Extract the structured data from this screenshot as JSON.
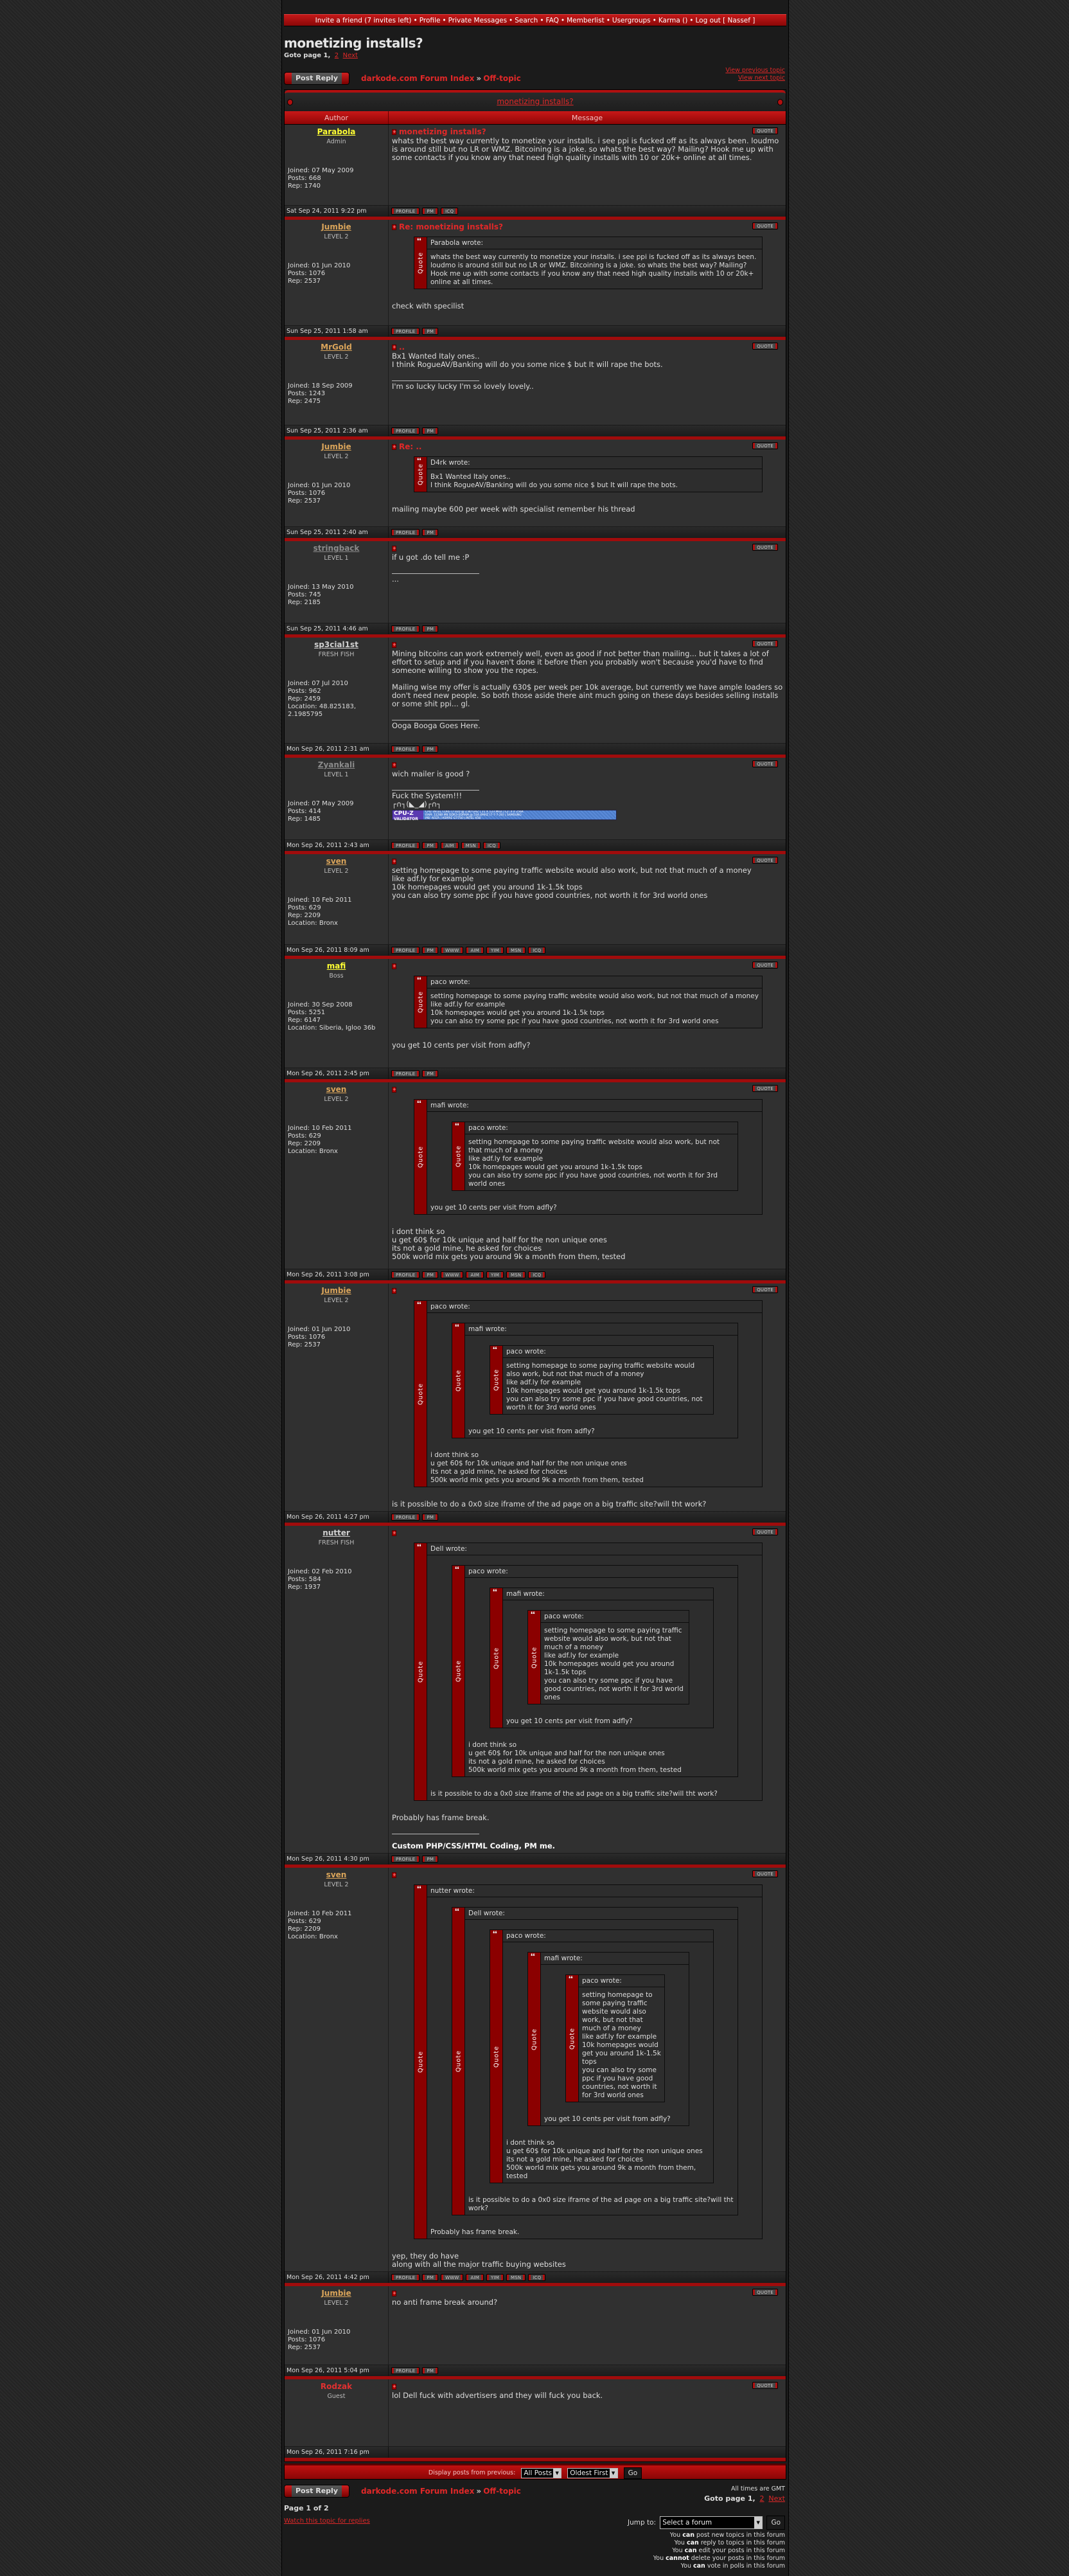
{
  "nav": {
    "items": [
      "Invite a friend (7 invites left)",
      "Profile",
      "Private Messages",
      "Search",
      "FAQ",
      "Memberlist",
      "Usergroups",
      "Karma ()",
      "Log out [ Nassef ]"
    ],
    "separator": "•"
  },
  "topic": {
    "title": "monetizing installs?",
    "goto_label": "Goto page 1,",
    "goto_page2": "2",
    "goto_next": "Next",
    "post_reply": "Post Reply",
    "breadcrumb_index": "darkode.com Forum Index",
    "breadcrumb_sep": "»",
    "breadcrumb_forum": "Off-topic",
    "view_previous": "View previous topic",
    "view_next": "View next topic",
    "col_author": "Author",
    "col_message": "Message",
    "quote_button": "QUOTE",
    "quote_word": "Quote",
    "wrote_suffix": " wrote:"
  },
  "colors": {
    "accent": "#e02828",
    "header_red": "#b01010",
    "quote_bar": "#8b0000"
  },
  "posts": [
    {
      "author": "Parabola",
      "rank": "Admin",
      "color": "#ffff33",
      "stats": [
        "Joined: 07 May 2009",
        "Posts: 668",
        "Rep: 1740"
      ],
      "subject": "monetizing installs?",
      "content": [
        {
          "type": "text",
          "lines": [
            "whats the best way currently to monetize your installs. i see ppi is fucked off as its always been. loudmo is around still but no LR or WMZ. Bitcoining is a joke. so whats the best way? Mailing? Hook me up with some contacts if you know any that need high quality installs with 10 or 20k+ online at all times."
          ]
        }
      ],
      "time": "Sat Sep 24, 2011 9:22 pm",
      "buttons": [
        "PROFILE",
        "PM",
        "ICQ"
      ]
    },
    {
      "author": "Jumbie",
      "rank": "LEVEL 2",
      "color": "#d9a45a",
      "stats": [
        "Joined: 01 Jun 2010",
        "Posts: 1076",
        "Rep: 2537"
      ],
      "subject": "Re: monetizing installs?",
      "content": [
        {
          "type": "quote",
          "author": "Parabola",
          "content": [
            {
              "type": "text",
              "lines": [
                "whats the best way currently to monetize your installs. i see ppi is fucked off as its always been. loudmo is around still but no LR or WMZ. Bitcoining is a joke. so whats the best way? Mailing? Hook me up with some contacts if you know any that need high quality installs with 10 or 20k+ online at all times."
              ]
            }
          ]
        },
        {
          "type": "text",
          "lines": [
            "check with specilist"
          ]
        }
      ],
      "time": "Sun Sep 25, 2011 1:58 am",
      "buttons": [
        "PROFILE",
        "PM"
      ]
    },
    {
      "author": "MrGold",
      "rank": "LEVEL 2",
      "color": "#d9a45a",
      "stats": [
        "Joined: 18 Sep 2009",
        "Posts: 1243",
        "Rep: 2475"
      ],
      "subject": "..",
      "content": [
        {
          "type": "text",
          "lines": [
            "Bx1 Wanted Italy ones..",
            "I think RogueAV/Banking will do you some nice $ but It will rape the bots."
          ]
        }
      ],
      "signature": [
        "I'm so lucky lucky I'm so lovely lovely.."
      ],
      "time": "Sun Sep 25, 2011 2:36 am",
      "buttons": [
        "PROFILE",
        "PM"
      ]
    },
    {
      "author": "Jumbie",
      "rank": "LEVEL 2",
      "color": "#d9a45a",
      "stats": [
        "Joined: 01 Jun 2010",
        "Posts: 1076",
        "Rep: 2537"
      ],
      "subject": "Re: ..",
      "content": [
        {
          "type": "quote",
          "author": "D4rk",
          "content": [
            {
              "type": "text",
              "lines": [
                "Bx1 Wanted Italy ones..",
                "I think RogueAV/Banking will do you some nice $ but It will rape the bots."
              ]
            }
          ]
        },
        {
          "type": "text",
          "lines": [
            "mailing maybe 600 per week with specialist remember his thread"
          ]
        }
      ],
      "time": "Sun Sep 25, 2011 2:40 am",
      "buttons": [
        "PROFILE",
        "PM"
      ]
    },
    {
      "author": "stringback",
      "rank": "LEVEL 1",
      "color": "#8a8a8a",
      "stats": [
        "Joined: 13 May 2010",
        "Posts: 745",
        "Rep: 2185"
      ],
      "subject": "",
      "content": [
        {
          "type": "text",
          "lines": [
            "if u got .do tell me :P"
          ]
        }
      ],
      "signature": [
        "..."
      ],
      "time": "Sun Sep 25, 2011 4:46 am",
      "buttons": [
        "PROFILE",
        "PM"
      ]
    },
    {
      "author": "sp3cial1st",
      "rank": "FRESH FISH",
      "color": "#cfcfcf",
      "stats": [
        "Joined: 07 Jul 2010",
        "Posts: 962",
        "Rep: 2459",
        "Location: 48.825183, 2.1985795"
      ],
      "subject": "",
      "content": [
        {
          "type": "text",
          "lines": [
            "Mining bitcoins can work extremely well, even as good if not better than mailing... but it takes a lot of effort to setup and if you haven't done it before then you probably won't because you'd have to find someone willing to show you the ropes.",
            "",
            "Mailing wise my offer is actually 630$ per week per 10k average, but currently we have ample loaders so don't need new people. So both those aside there aint much going on these days besides selling installs or some shit ppi... gl."
          ]
        }
      ],
      "signature": [
        "Ooga Booga Goes Here."
      ],
      "time": "Mon Sep 26, 2011 2:31 am",
      "buttons": [
        "PROFILE",
        "PM"
      ]
    },
    {
      "author": "Zyankali",
      "rank": "LEVEL 1",
      "color": "#8a8a8a",
      "stats": [
        "Joined: 07 May 2009",
        "Posts: 414",
        "Rep: 1485"
      ],
      "subject": "",
      "content": [
        {
          "type": "text",
          "lines": [
            "wich mailer is good ?"
          ]
        }
      ],
      "signature": [
        "Fuck the System!!!",
        "┌∩┐(◣_◢)┌∩┐"
      ],
      "cpuz": {
        "logo": "CPU-Z",
        "logo_sub": "VALIDATOR",
        "lines": [
          "CPU: INTEL CORE I7 920 @ 2.80 GHZ | 21 X 133 MHZ | L2: 4 X 256K",
          "RAM: 12288 MB DDR3-SDRAM @ 534.4MHZ (7-7-7-20) | SAMSUNG",
          "MB: ACER | ASPIRE G7750 | INTEL X58"
        ]
      },
      "time": "Mon Sep 26, 2011 2:43 am",
      "buttons": [
        "PROFILE",
        "PM",
        "AIM",
        "MSN",
        "ICQ"
      ]
    },
    {
      "author": "sven",
      "rank": "LEVEL 2",
      "color": "#d9a45a",
      "stats": [
        "Joined: 10 Feb 2011",
        "Posts: 629",
        "Rep: 2209",
        "Location: Bronx"
      ],
      "subject": "",
      "content": [
        {
          "type": "text",
          "lines": [
            "setting homepage to some paying traffic website would also work, but not that much of a money",
            "like adf.ly for example",
            "10k homepages would get you around 1k-1.5k tops",
            "you can also try some ppc if you have good countries, not worth it for 3rd world ones"
          ]
        }
      ],
      "time": "Mon Sep 26, 2011 8:09 am",
      "buttons": [
        "PROFILE",
        "PM",
        "WWW",
        "AIM",
        "YIM",
        "MSN",
        "ICQ"
      ]
    },
    {
      "author": "mafi",
      "rank": "Boss",
      "color": "#ffff33",
      "stats": [
        "Joined: 30 Sep 2008",
        "Posts: 5251",
        "Rep: 6147",
        "Location: Siberia, Igloo 36b"
      ],
      "subject": "",
      "content": [
        {
          "type": "quote",
          "author": "paco",
          "content": [
            {
              "type": "text",
              "lines": [
                "setting homepage to some paying traffic website would also work, but not that much of a money",
                "like adf.ly for example",
                "10k homepages would get you around 1k-1.5k tops",
                "you can also try some ppc if you have good countries, not worth it for 3rd world ones"
              ]
            }
          ]
        },
        {
          "type": "text",
          "lines": [
            "you get 10 cents per visit from adfly?"
          ]
        }
      ],
      "time": "Mon Sep 26, 2011 2:45 pm",
      "buttons": [
        "PROFILE",
        "PM"
      ]
    },
    {
      "author": "sven",
      "rank": "LEVEL 2",
      "color": "#d9a45a",
      "stats": [
        "Joined: 10 Feb 2011",
        "Posts: 629",
        "Rep: 2209",
        "Location: Bronx"
      ],
      "subject": "",
      "content": [
        {
          "type": "quote",
          "author": "mafi",
          "content": [
            {
              "type": "quote",
              "author": "paco",
              "content": [
                {
                  "type": "text",
                  "lines": [
                    "setting homepage to some paying traffic website would also work, but not that much of a money",
                    "like adf.ly for example",
                    "10k homepages would get you around 1k-1.5k tops",
                    "you can also try some ppc if you have good countries, not worth it for 3rd world ones"
                  ]
                }
              ]
            },
            {
              "type": "text",
              "lines": [
                "you get 10 cents per visit from adfly?"
              ]
            }
          ]
        },
        {
          "type": "text",
          "lines": [
            "i dont think so",
            "u get 60$ for 10k unique and half for the non unique ones",
            "its not a gold mine, he asked for choices",
            "500k world mix gets you around 9k a month from them, tested"
          ]
        }
      ],
      "time": "Mon Sep 26, 2011 3:08 pm",
      "buttons": [
        "PROFILE",
        "PM",
        "WWW",
        "AIM",
        "YIM",
        "MSN",
        "ICQ"
      ]
    },
    {
      "author": "Jumbie",
      "rank": "LEVEL 2",
      "color": "#d9a45a",
      "stats": [
        "Joined: 01 Jun 2010",
        "Posts: 1076",
        "Rep: 2537"
      ],
      "subject": "",
      "content": [
        {
          "type": "quote",
          "author": "paco",
          "content": [
            {
              "type": "quote",
              "author": "mafi",
              "content": [
                {
                  "type": "quote",
                  "author": "paco",
                  "content": [
                    {
                      "type": "text",
                      "lines": [
                        "setting homepage to some paying traffic website would also work, but not that much of a money",
                        "like adf.ly for example",
                        "10k homepages would get you around 1k-1.5k tops",
                        "you can also try some ppc if you have good countries, not worth it for 3rd world ones"
                      ]
                    }
                  ]
                },
                {
                  "type": "text",
                  "lines": [
                    "you get 10 cents per visit from adfly?"
                  ]
                }
              ]
            },
            {
              "type": "text",
              "lines": [
                "i dont think so",
                "u get 60$ for 10k unique and half for the non unique ones",
                "its not a gold mine, he asked for choices",
                "500k world mix gets you around 9k a month from them, tested"
              ]
            }
          ]
        },
        {
          "type": "text",
          "lines": [
            "is it possible to do a 0x0 size iframe of the ad page on a big traffic site?will tht work?"
          ]
        }
      ],
      "time": "Mon Sep 26, 2011 4:27 pm",
      "buttons": [
        "PROFILE",
        "PM"
      ]
    },
    {
      "author": "nutter",
      "rank": "FRESH FISH",
      "color": "#cfcfcf",
      "stats": [
        "Joined: 02 Feb 2010",
        "Posts: 584",
        "Rep: 1937"
      ],
      "subject": "",
      "content": [
        {
          "type": "quote",
          "author": "Dell",
          "content": [
            {
              "type": "quote",
              "author": "paco",
              "content": [
                {
                  "type": "quote",
                  "author": "mafi",
                  "content": [
                    {
                      "type": "quote",
                      "author": "paco",
                      "content": [
                        {
                          "type": "text",
                          "lines": [
                            "setting homepage to some paying traffic website would also work, but not that much of a money",
                            "like adf.ly for example",
                            "10k homepages would get you around 1k-1.5k tops",
                            "you can also try some ppc if you have good countries, not worth it for 3rd world ones"
                          ]
                        }
                      ]
                    },
                    {
                      "type": "text",
                      "lines": [
                        "you get 10 cents per visit from adfly?"
                      ]
                    }
                  ]
                },
                {
                  "type": "text",
                  "lines": [
                    "i dont think so",
                    "u get 60$ for 10k unique and half for the non unique ones",
                    "its not a gold mine, he asked for choices",
                    "500k world mix gets you around 9k a month from them, tested"
                  ]
                }
              ]
            },
            {
              "type": "text",
              "lines": [
                "is it possible to do a 0x0 size iframe of the ad page on a big traffic site?will tht work?"
              ]
            }
          ]
        },
        {
          "type": "text",
          "lines": [
            "Probably has frame break."
          ]
        }
      ],
      "signature": [
        "Custom PHP/CSS/HTML Coding, PM me."
      ],
      "signature_bold": true,
      "time": "Mon Sep 26, 2011 4:30 pm",
      "buttons": [
        "PROFILE",
        "PM"
      ]
    },
    {
      "author": "sven",
      "rank": "LEVEL 2",
      "color": "#d9a45a",
      "stats": [
        "Joined: 10 Feb 2011",
        "Posts: 629",
        "Rep: 2209",
        "Location: Bronx"
      ],
      "subject": "",
      "content": [
        {
          "type": "quote",
          "author": "nutter",
          "content": [
            {
              "type": "quote",
              "author": "Dell",
              "content": [
                {
                  "type": "quote",
                  "author": "paco",
                  "content": [
                    {
                      "type": "quote",
                      "author": "mafi",
                      "content": [
                        {
                          "type": "quote",
                          "author": "paco",
                          "content": [
                            {
                              "type": "text",
                              "lines": [
                                "setting homepage to some paying traffic website would also work, but not that much of a money",
                                "like adf.ly for example",
                                "10k homepages would get you around 1k-1.5k tops",
                                "you can also try some ppc if you have good countries, not worth it for 3rd world ones"
                              ]
                            }
                          ]
                        },
                        {
                          "type": "text",
                          "lines": [
                            "you get 10 cents per visit from adfly?"
                          ]
                        }
                      ]
                    },
                    {
                      "type": "text",
                      "lines": [
                        "i dont think so",
                        "u get 60$ for 10k unique and half for the non unique ones",
                        "its not a gold mine, he asked for choices",
                        "500k world mix gets you around 9k a month from them, tested"
                      ]
                    }
                  ]
                },
                {
                  "type": "text",
                  "lines": [
                    "is it possible to do a 0x0 size iframe of the ad page on a big traffic site?will tht work?"
                  ]
                }
              ]
            },
            {
              "type": "text",
              "lines": [
                "Probably has frame break."
              ]
            }
          ]
        },
        {
          "type": "text",
          "lines": [
            "yep, they do have",
            "along with all the major traffic buying websites"
          ]
        }
      ],
      "time": "Mon Sep 26, 2011 4:42 pm",
      "buttons": [
        "PROFILE",
        "PM",
        "WWW",
        "AIM",
        "YIM",
        "MSN",
        "ICQ"
      ]
    },
    {
      "author": "Jumbie",
      "rank": "LEVEL 2",
      "color": "#d9a45a",
      "stats": [
        "Joined: 01 Jun 2010",
        "Posts: 1076",
        "Rep: 2537"
      ],
      "subject": "",
      "content": [
        {
          "type": "text",
          "lines": [
            "no anti frame break around?"
          ]
        }
      ],
      "time": "Mon Sep 26, 2011 5:04 pm",
      "buttons": [
        "PROFILE",
        "PM"
      ]
    },
    {
      "author": "Rodzak",
      "rank": "Guest",
      "color": "#e03030",
      "plain": true,
      "stats": [],
      "subject": "",
      "content": [
        {
          "type": "text",
          "lines": [
            "lol Dell fuck with advertisers and they will fuck you back."
          ]
        }
      ],
      "time": "Mon Sep 26, 2011 7:16 pm",
      "buttons": []
    }
  ],
  "display": {
    "label": "Display posts from previous:",
    "range": "All Posts",
    "order": "Oldest First",
    "go": "Go"
  },
  "footer": {
    "timezone": "All times are GMT",
    "page_of": "Page 1 of 2",
    "watch": "Watch this topic for replies",
    "jump_label": "Jump to:",
    "jump_value": "Select a forum",
    "jump_go": "Go",
    "permissions": [
      {
        "pre": "You ",
        "verb": "can",
        "post": " post new topics in this forum"
      },
      {
        "pre": "You ",
        "verb": "can",
        "post": " reply to topics in this forum"
      },
      {
        "pre": "You ",
        "verb": "can",
        "post": " edit your posts in this forum"
      },
      {
        "pre": "You ",
        "verb": "cannot",
        "post": " delete your posts in this forum"
      },
      {
        "pre": "You ",
        "verb": "can",
        "post": " vote in polls in this forum"
      }
    ]
  }
}
